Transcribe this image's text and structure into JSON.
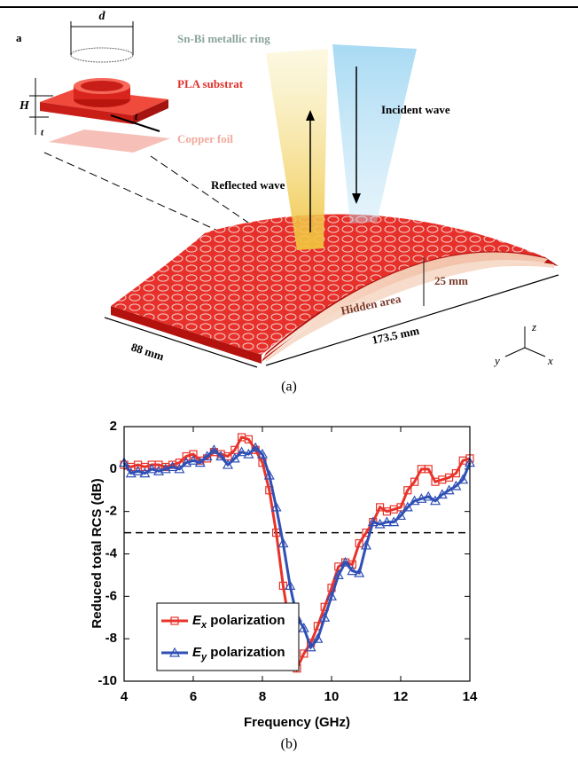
{
  "figure_a": {
    "panel_label": "a",
    "caption": "(a)",
    "labels": {
      "d": "d",
      "H": "H",
      "t": "t",
      "ring": "Sn-Bi metallic ring",
      "substrate": "PLA substrat",
      "foil": "Copper foil",
      "incident": "Incident wave",
      "reflected": "Reflected wave",
      "hidden": "Hidden area",
      "height": "25 mm",
      "length": "173.5 mm",
      "width": "88 mm",
      "z": "z",
      "y": "y",
      "x": "x"
    }
  },
  "figure_b_caption": "(b)",
  "chart_data": {
    "type": "line",
    "x_label": "Frequency (GHz)",
    "y_label": "Reduced total RCS (dB)",
    "x": [
      4,
      4.2,
      4.4,
      4.6,
      4.8,
      5,
      5.2,
      5.4,
      5.6,
      5.8,
      6,
      6.2,
      6.4,
      6.6,
      6.8,
      7,
      7.2,
      7.4,
      7.6,
      7.8,
      8,
      8.2,
      8.4,
      8.6,
      8.8,
      9,
      9.2,
      9.4,
      9.6,
      9.8,
      10,
      10.2,
      10.4,
      10.6,
      10.8,
      11,
      11.2,
      11.4,
      11.6,
      11.8,
      12,
      12.2,
      12.4,
      12.6,
      12.8,
      13,
      13.2,
      13.4,
      13.6,
      13.8,
      14
    ],
    "series": [
      {
        "name": "Ex polarization",
        "color": "#e8332a",
        "marker": "square",
        "values": [
          0.2,
          0.1,
          0.2,
          0.1,
          0.2,
          0.2,
          0.1,
          0.2,
          0.3,
          0.6,
          0.7,
          0.4,
          0.5,
          0.8,
          0.7,
          0.6,
          0.9,
          1.5,
          1.4,
          0.9,
          0.3,
          -1.0,
          -3.0,
          -5.5,
          -7.5,
          -9.4,
          -8.7,
          -8.2,
          -7.4,
          -6.5,
          -5.6,
          -4.6,
          -4.4,
          -4.5,
          -3.5,
          -3.0,
          -2.5,
          -1.8,
          -2.0,
          -1.9,
          -1.8,
          -1.0,
          -0.6,
          0.0,
          0.0,
          -0.6,
          -0.5,
          -0.4,
          -0.2,
          0.4,
          0.5
        ]
      },
      {
        "name": "Ey polarization",
        "color": "#2f4fb5",
        "marker": "triangle",
        "values": [
          0.3,
          -0.2,
          -0.1,
          -0.2,
          0.0,
          -0.1,
          0.0,
          0.1,
          0.0,
          0.3,
          0.4,
          0.3,
          0.6,
          0.9,
          0.6,
          0.2,
          0.5,
          0.8,
          0.7,
          1.0,
          0.7,
          -0.3,
          -1.8,
          -3.5,
          -5.5,
          -7.0,
          -7.5,
          -8.4,
          -8.0,
          -7.0,
          -6.0,
          -5.0,
          -4.4,
          -4.8,
          -4.9,
          -3.6,
          -2.5,
          -2.6,
          -2.5,
          -2.5,
          -2.2,
          -1.8,
          -1.5,
          -1.4,
          -1.3,
          -1.5,
          -1.2,
          -1.0,
          -0.8,
          -0.5,
          0.3
        ]
      }
    ],
    "hline": -3,
    "xlim": [
      4,
      14
    ],
    "ylim": [
      -10,
      2
    ],
    "xticks": [
      4,
      6,
      8,
      10,
      12,
      14
    ],
    "yticks": [
      -10,
      -8,
      -6,
      -4,
      -2,
      0,
      2
    ],
    "legend": "lower left"
  }
}
